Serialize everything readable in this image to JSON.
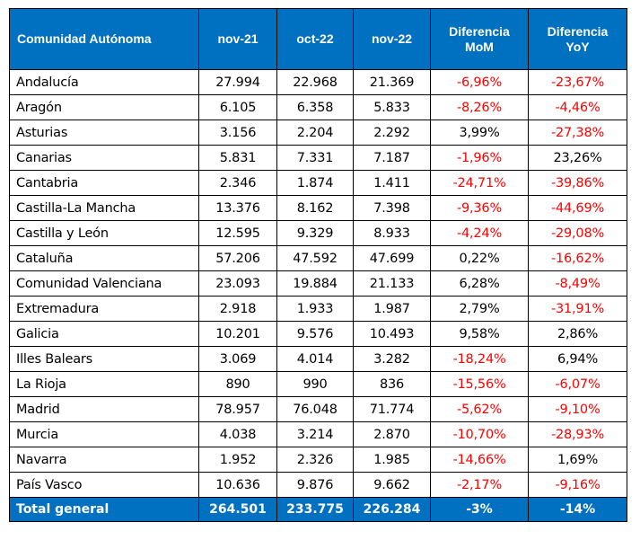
{
  "table": {
    "headers": [
      "Comunidad Autónoma",
      "nov-21",
      "oct-22",
      "nov-22",
      "Diferencia MoM",
      "Diferencia YoY"
    ],
    "header_lines": {
      "mom": [
        "Diferencia",
        "MoM"
      ],
      "yoy": [
        "Diferencia",
        "YoY"
      ]
    },
    "rows": [
      {
        "name": "Andalucía",
        "nov21": "27.994",
        "oct22": "22.968",
        "nov22": "21.369",
        "mom": "-6,96%",
        "yoy": "-23,67%"
      },
      {
        "name": "Aragón",
        "nov21": "6.105",
        "oct22": "6.358",
        "nov22": "5.833",
        "mom": "-8,26%",
        "yoy": "-4,46%"
      },
      {
        "name": "Asturias",
        "nov21": "3.156",
        "oct22": "2.204",
        "nov22": "2.292",
        "mom": "3,99%",
        "yoy": "-27,38%"
      },
      {
        "name": "Canarias",
        "nov21": "5.831",
        "oct22": "7.331",
        "nov22": "7.187",
        "mom": "-1,96%",
        "yoy": "23,26%"
      },
      {
        "name": "Cantabria",
        "nov21": "2.346",
        "oct22": "1.874",
        "nov22": "1.411",
        "mom": "-24,71%",
        "yoy": "-39,86%"
      },
      {
        "name": "Castilla-La Mancha",
        "nov21": "13.376",
        "oct22": "8.162",
        "nov22": "7.398",
        "mom": "-9,36%",
        "yoy": "-44,69%"
      },
      {
        "name": "Castilla y León",
        "nov21": "12.595",
        "oct22": "9.329",
        "nov22": "8.933",
        "mom": "-4,24%",
        "yoy": "-29,08%"
      },
      {
        "name": "Cataluña",
        "nov21": "57.206",
        "oct22": "47.592",
        "nov22": "47.699",
        "mom": "0,22%",
        "yoy": "-16,62%"
      },
      {
        "name": "Comunidad Valenciana",
        "nov21": "23.093",
        "oct22": "19.884",
        "nov22": "21.133",
        "mom": "6,28%",
        "yoy": "-8,49%"
      },
      {
        "name": "Extremadura",
        "nov21": "2.918",
        "oct22": "1.933",
        "nov22": "1.987",
        "mom": "2,79%",
        "yoy": "-31,91%"
      },
      {
        "name": "Galicia",
        "nov21": "10.201",
        "oct22": "9.576",
        "nov22": "10.493",
        "mom": "9,58%",
        "yoy": "2,86%"
      },
      {
        "name": "Illes Balears",
        "nov21": "3.069",
        "oct22": "4.014",
        "nov22": "3.282",
        "mom": "-18,24%",
        "yoy": "6,94%"
      },
      {
        "name": "La Rioja",
        "nov21": "890",
        "oct22": "990",
        "nov22": "836",
        "mom": "-15,56%",
        "yoy": "-6,07%"
      },
      {
        "name": "Madrid",
        "nov21": "78.957",
        "oct22": "76.048",
        "nov22": "71.774",
        "mom": "-5,62%",
        "yoy": "-9,10%"
      },
      {
        "name": "Murcia",
        "nov21": "4.038",
        "oct22": "3.214",
        "nov22": "2.870",
        "mom": "-10,70%",
        "yoy": "-28,93%"
      },
      {
        "name": "Navarra",
        "nov21": "1.952",
        "oct22": "2.326",
        "nov22": "1.985",
        "mom": "-14,66%",
        "yoy": "1,69%"
      },
      {
        "name": "País Vasco",
        "nov21": "10.636",
        "oct22": "9.876",
        "nov22": "9.662",
        "mom": "-2,17%",
        "yoy": "-9,16%"
      }
    ],
    "total": {
      "name": "Total general",
      "nov21": "264.501",
      "oct22": "233.775",
      "nov22": "226.284",
      "mom": "-3%",
      "yoy": "-14%"
    }
  },
  "colors": {
    "header_bg": "#0070c0",
    "header_text": "#ffffff",
    "negative": "#ff0000",
    "positive": "#000000"
  }
}
